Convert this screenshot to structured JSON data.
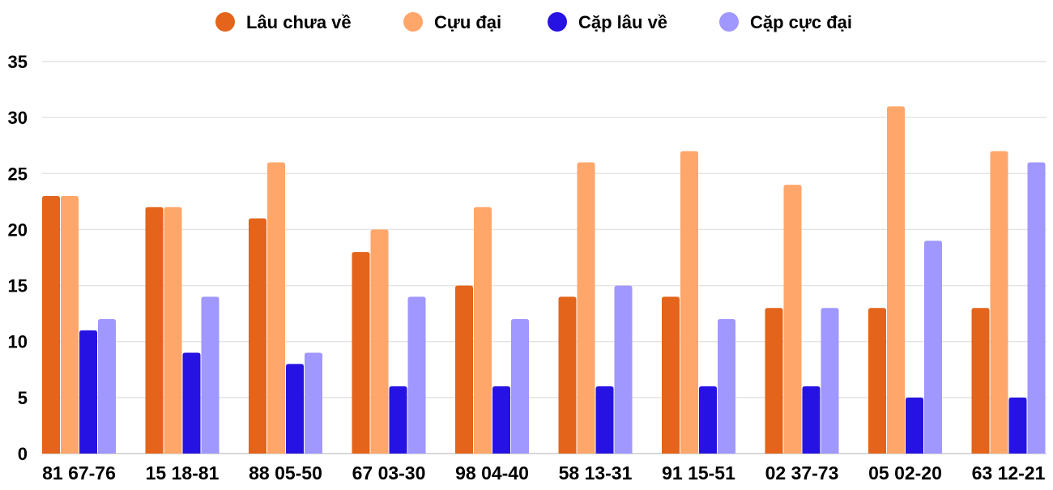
{
  "chart_data": {
    "type": "bar",
    "categories": [
      "81 67-76",
      "15 18-81",
      "88 05-50",
      "67 03-30",
      "98 04-40",
      "58 13-31",
      "91 15-51",
      "02 37-73",
      "05 02-20",
      "63 12-21"
    ],
    "series": [
      {
        "name": "Lâu chưa về",
        "color": "#E3641A",
        "values": [
          23,
          22,
          21,
          18,
          15,
          14,
          14,
          13,
          13,
          13
        ]
      },
      {
        "name": "Cựu đại",
        "color": "#FFA66B",
        "values": [
          23,
          22,
          26,
          20,
          22,
          26,
          27,
          24,
          31,
          27
        ]
      },
      {
        "name": "Cặp lâu về",
        "color": "#2613E3",
        "values": [
          11,
          9,
          8,
          6,
          6,
          6,
          6,
          6,
          5,
          5
        ]
      },
      {
        "name": "Cặp cực đại",
        "color": "#A097FF",
        "values": [
          12,
          14,
          9,
          14,
          12,
          15,
          12,
          13,
          19,
          26
        ]
      }
    ],
    "ylim": [
      0,
      35
    ],
    "yticks": [
      "0",
      "5",
      "10",
      "15",
      "20",
      "25",
      "30",
      "35"
    ],
    "grid": true,
    "legend": "top-center",
    "title": "",
    "xlabel": "",
    "ylabel": ""
  }
}
